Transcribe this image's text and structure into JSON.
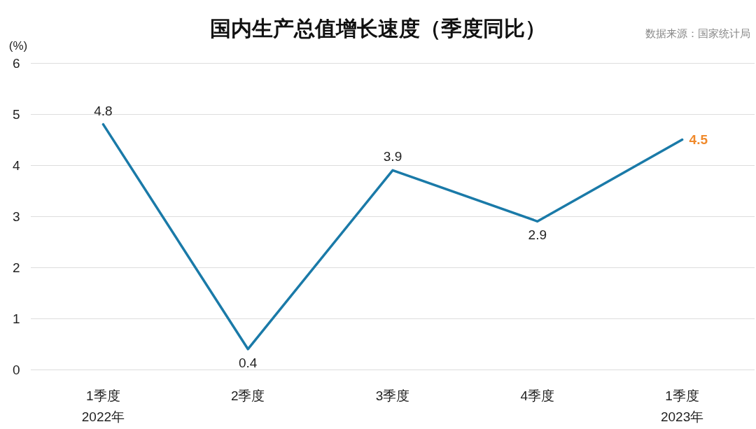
{
  "chart_data": {
    "type": "line",
    "title": "国内生产总值增长速度（季度同比）",
    "ylabel": "(%)",
    "annotations": [
      "数据来源：国家统计局"
    ],
    "categories": [
      "1季度\n2022年",
      "2季度",
      "3季度",
      "4季度",
      "1季度\n2023年"
    ],
    "series": [
      {
        "color": "#1a7aa8",
        "values": [
          4.8,
          0.4,
          3.9,
          2.9,
          4.5
        ]
      }
    ],
    "ylim": [
      0,
      6
    ],
    "yticks": [
      0,
      1,
      2,
      3,
      4,
      5,
      6
    ],
    "grid": "y",
    "marker": "none",
    "line_style": "solid",
    "data_labels": true
  }
}
